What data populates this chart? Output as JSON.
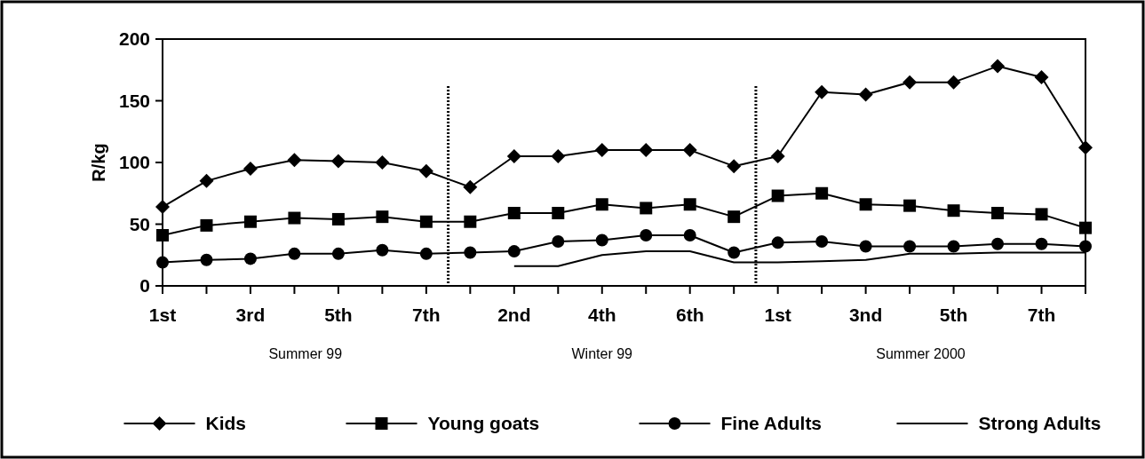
{
  "chart_data": {
    "type": "line",
    "ylabel": "R/kg",
    "categories": [
      "1st",
      null,
      "3rd",
      null,
      "5th",
      null,
      "7th",
      null,
      "2nd",
      null,
      "4th",
      null,
      "6th",
      null,
      "1st",
      null,
      "3nd",
      null,
      "5th",
      null,
      "7th",
      null
    ],
    "ylim": [
      0,
      200
    ],
    "yticks": [
      0,
      50,
      100,
      150,
      200
    ],
    "grid": false,
    "legend": "bottom",
    "annotations": [
      "Summer 99",
      "Winter 99",
      "Summer 2000"
    ],
    "series": [
      {
        "name": "Kids",
        "color": "#000000",
        "marker": "diamond",
        "values": [
          64,
          85,
          95,
          102,
          101,
          100,
          93,
          80,
          105,
          105,
          110,
          110,
          110,
          97,
          105,
          157,
          155,
          165,
          165,
          178,
          169,
          112
        ]
      },
      {
        "name": "Young goats",
        "color": "#000000",
        "marker": "square",
        "values": [
          41,
          49,
          52,
          55,
          54,
          56,
          52,
          52,
          59,
          59,
          66,
          63,
          66,
          56,
          73,
          75,
          66,
          65,
          61,
          59,
          58,
          47
        ]
      },
      {
        "name": "Fine Adults",
        "color": "#000000",
        "marker": "circle",
        "values": [
          19,
          21,
          22,
          26,
          26,
          29,
          26,
          27,
          28,
          36,
          37,
          41,
          41,
          27,
          35,
          36,
          32,
          32,
          32,
          34,
          34,
          32
        ]
      },
      {
        "name": "Strong Adults",
        "color": "#000000",
        "marker": "none",
        "values": [
          null,
          null,
          null,
          null,
          null,
          null,
          null,
          null,
          16,
          16,
          25,
          28,
          28,
          19,
          19,
          20,
          21,
          26,
          26,
          27,
          27,
          27
        ]
      }
    ]
  }
}
